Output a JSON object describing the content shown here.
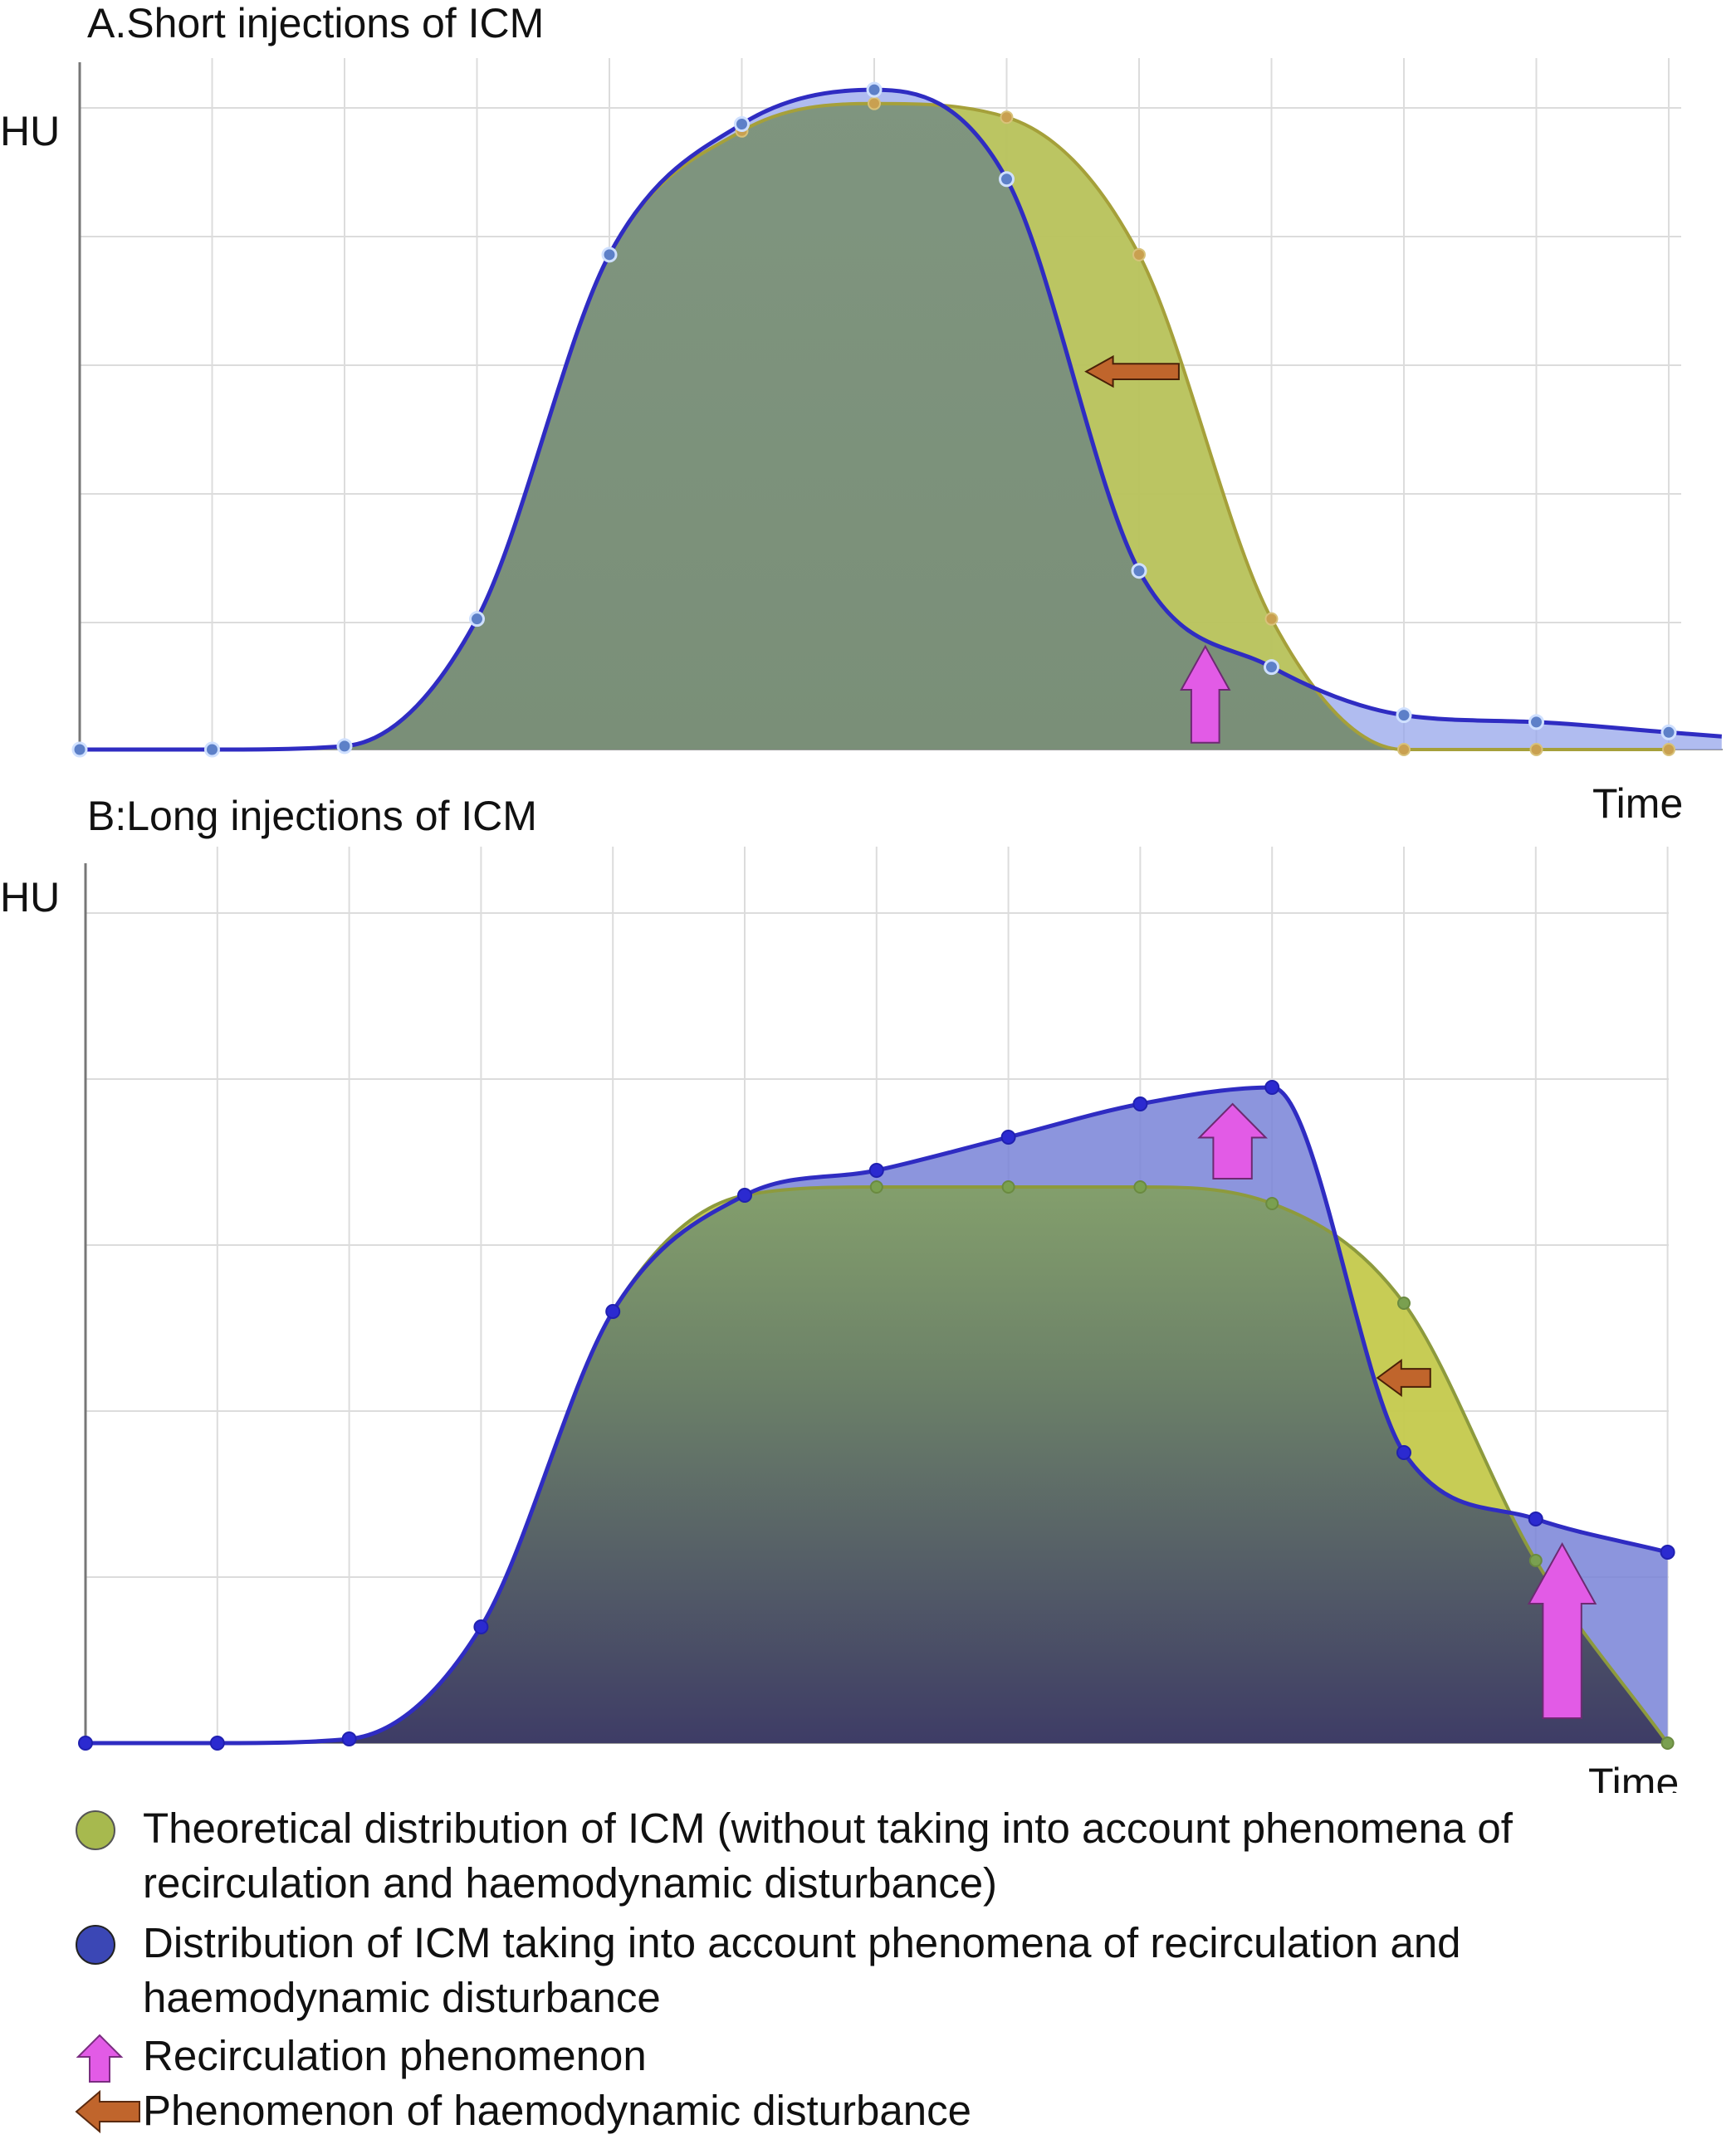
{
  "chart_data": [
    {
      "type": "area",
      "title": "A.Short injections of ICM",
      "ylabel": "HU",
      "xlabel": "Time",
      "x": [
        0,
        1,
        2,
        3,
        4,
        5,
        6,
        7,
        8,
        9,
        10,
        11,
        12
      ],
      "xlim": [
        0,
        12.4
      ],
      "ylim": [
        0,
        100
      ],
      "grid": true,
      "series": [
        {
          "key": "theoretical",
          "values": [
            0,
            0,
            0.5,
            19,
            72,
            90,
            94,
            92,
            72,
            19,
            0,
            0,
            0
          ]
        },
        {
          "key": "real",
          "values": [
            0,
            0,
            0.5,
            19,
            72,
            91,
            96,
            83,
            26,
            12,
            5,
            4,
            2.5
          ]
        }
      ],
      "annotations": [
        {
          "type": "recirculation",
          "x": 8.5,
          "y_from": 1,
          "y_to": 15
        },
        {
          "type": "haemodynamic",
          "x_from": 8.3,
          "x_to": 7.6,
          "y": 55
        }
      ]
    },
    {
      "type": "area",
      "title": "B:Long injections of ICM",
      "ylabel": "HU",
      "xlabel": "Time",
      "x": [
        0,
        1,
        2,
        3,
        4,
        5,
        6,
        7,
        8,
        9,
        10,
        11,
        12
      ],
      "xlim": [
        0,
        12.4
      ],
      "ylim": [
        0,
        100
      ],
      "grid": true,
      "series": [
        {
          "key": "theoretical",
          "values": [
            0,
            0,
            0.5,
            14,
            52,
            66,
            67,
            67,
            67,
            65,
            53,
            22,
            0
          ]
        },
        {
          "key": "real",
          "values": [
            0,
            0,
            0.5,
            14,
            52,
            66,
            69,
            73,
            77,
            79,
            35,
            27,
            23
          ]
        }
      ],
      "annotations": [
        {
          "type": "recirculation",
          "x": 8.7,
          "y_from": 68,
          "y_to": 77
        },
        {
          "type": "haemodynamic",
          "x_from": 10.2,
          "x_to": 9.8,
          "y": 44
        },
        {
          "type": "recirculation",
          "x": 11.2,
          "y_from": 3,
          "y_to": 24
        }
      ]
    }
  ],
  "colors": {
    "theoretical": "#a7b94e",
    "real": "#2f2cc2",
    "recirculation_arrow": "#e25be6",
    "haemodynamic_arrow": "#c0652c"
  },
  "legend": [
    {
      "key": "theoretical",
      "symbol": "green-circle-icon",
      "text": "Theoretical distribution of ICM (without taking into account phenomena of recirculation and haemodynamic disturbance)"
    },
    {
      "key": "real",
      "symbol": "blue-circle-icon",
      "text": "Distribution of ICM taking into account phenomena of recirculation and haemodynamic disturbance"
    },
    {
      "key": "recirculation",
      "symbol": "magenta-up-arrow-icon",
      "text": "Recirculation phenomenon"
    },
    {
      "key": "haemodynamic",
      "symbol": "orange-left-arrow-icon",
      "text": "Phenomenon of haemodynamic disturbance"
    }
  ]
}
